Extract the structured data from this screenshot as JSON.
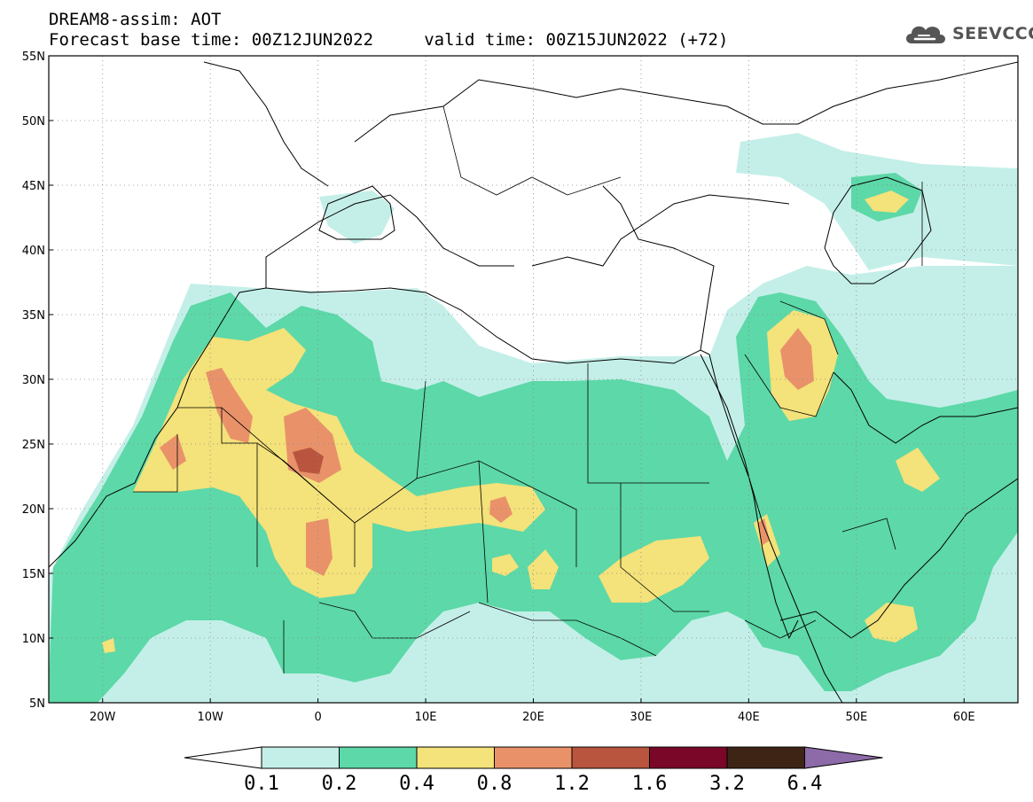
{
  "header": {
    "line1": "DREAM8-assim: AOT",
    "line2": "Forecast base time: 00Z12JUN2022     valid time: 00Z15JUN2022 (+72)"
  },
  "logo": {
    "icon": "cloud-icon",
    "text": "SEEVCCC"
  },
  "map": {
    "lat_range": [
      5,
      55
    ],
    "lon_range": [
      -25,
      65
    ],
    "lat_ticks": [
      "55N",
      "50N",
      "45N",
      "40N",
      "35N",
      "30N",
      "25N",
      "20N",
      "15N",
      "10N",
      "5N"
    ],
    "lat_values": [
      55,
      50,
      45,
      40,
      35,
      30,
      25,
      20,
      15,
      10,
      5
    ],
    "lon_ticks": [
      "20W",
      "10W",
      "0",
      "10E",
      "20E",
      "30E",
      "40E",
      "50E",
      "60E"
    ],
    "lon_values": [
      -20,
      -10,
      0,
      10,
      20,
      30,
      40,
      50,
      60
    ],
    "gridlines": "dotted"
  },
  "colorbar": {
    "labels": [
      "0.1",
      "0.2",
      "0.4",
      "0.8",
      "1.2",
      "1.6",
      "3.2",
      "6.4"
    ],
    "colors": [
      "#c4efe8",
      "#5dd8a8",
      "#f4e27a",
      "#e9926a",
      "#b9553e",
      "#7b0728",
      "#3d2415"
    ],
    "extend_low_color": "#ffffff",
    "extend_high_color": "#8d6aa8"
  }
}
